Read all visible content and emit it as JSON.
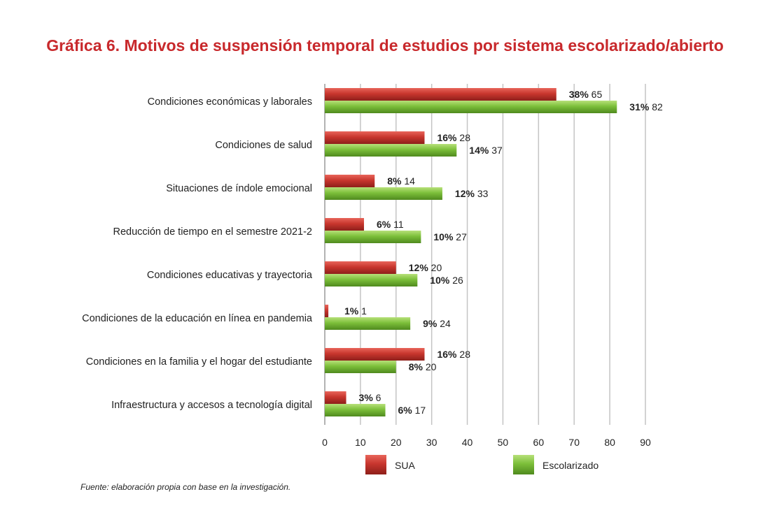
{
  "chart_data": {
    "type": "bar",
    "orientation": "horizontal",
    "title": "Gráfica 6. Motivos de suspensión temporal de estudios por sistema escolarizado/abierto",
    "categories": [
      "Condiciones económicas y laborales",
      "Condiciones de salud",
      "Situaciones de índole emocional",
      "Reducción de tiempo en el semestre 2021-2",
      "Condiciones educativas y trayectoria",
      "Condiciones de la educación en línea en pandemia",
      "Condiciones en la familia y el hogar del estudiante",
      "Infraestructura y accesos a tecnología digital"
    ],
    "series": [
      {
        "name": "SUA",
        "color": "#c8362e",
        "values": [
          65,
          28,
          14,
          11,
          20,
          1,
          28,
          6
        ],
        "percents": [
          "38%",
          "16%",
          "8%",
          "6%",
          "12%",
          "1%",
          "16%",
          "3%"
        ]
      },
      {
        "name": "Escolarizado",
        "color": "#7cbf3a",
        "values": [
          82,
          37,
          33,
          27,
          26,
          24,
          20,
          17
        ],
        "percents": [
          "31%",
          "14%",
          "12%",
          "10%",
          "10%",
          "9%",
          "8%",
          "6%"
        ]
      }
    ],
    "xlim": [
      0,
      90
    ],
    "xticks": [
      0,
      10,
      20,
      30,
      40,
      50,
      60,
      70,
      80,
      90
    ],
    "grid": true,
    "legend": "bottom",
    "source": "Fuente: elaboración propia con base en la investigación."
  }
}
